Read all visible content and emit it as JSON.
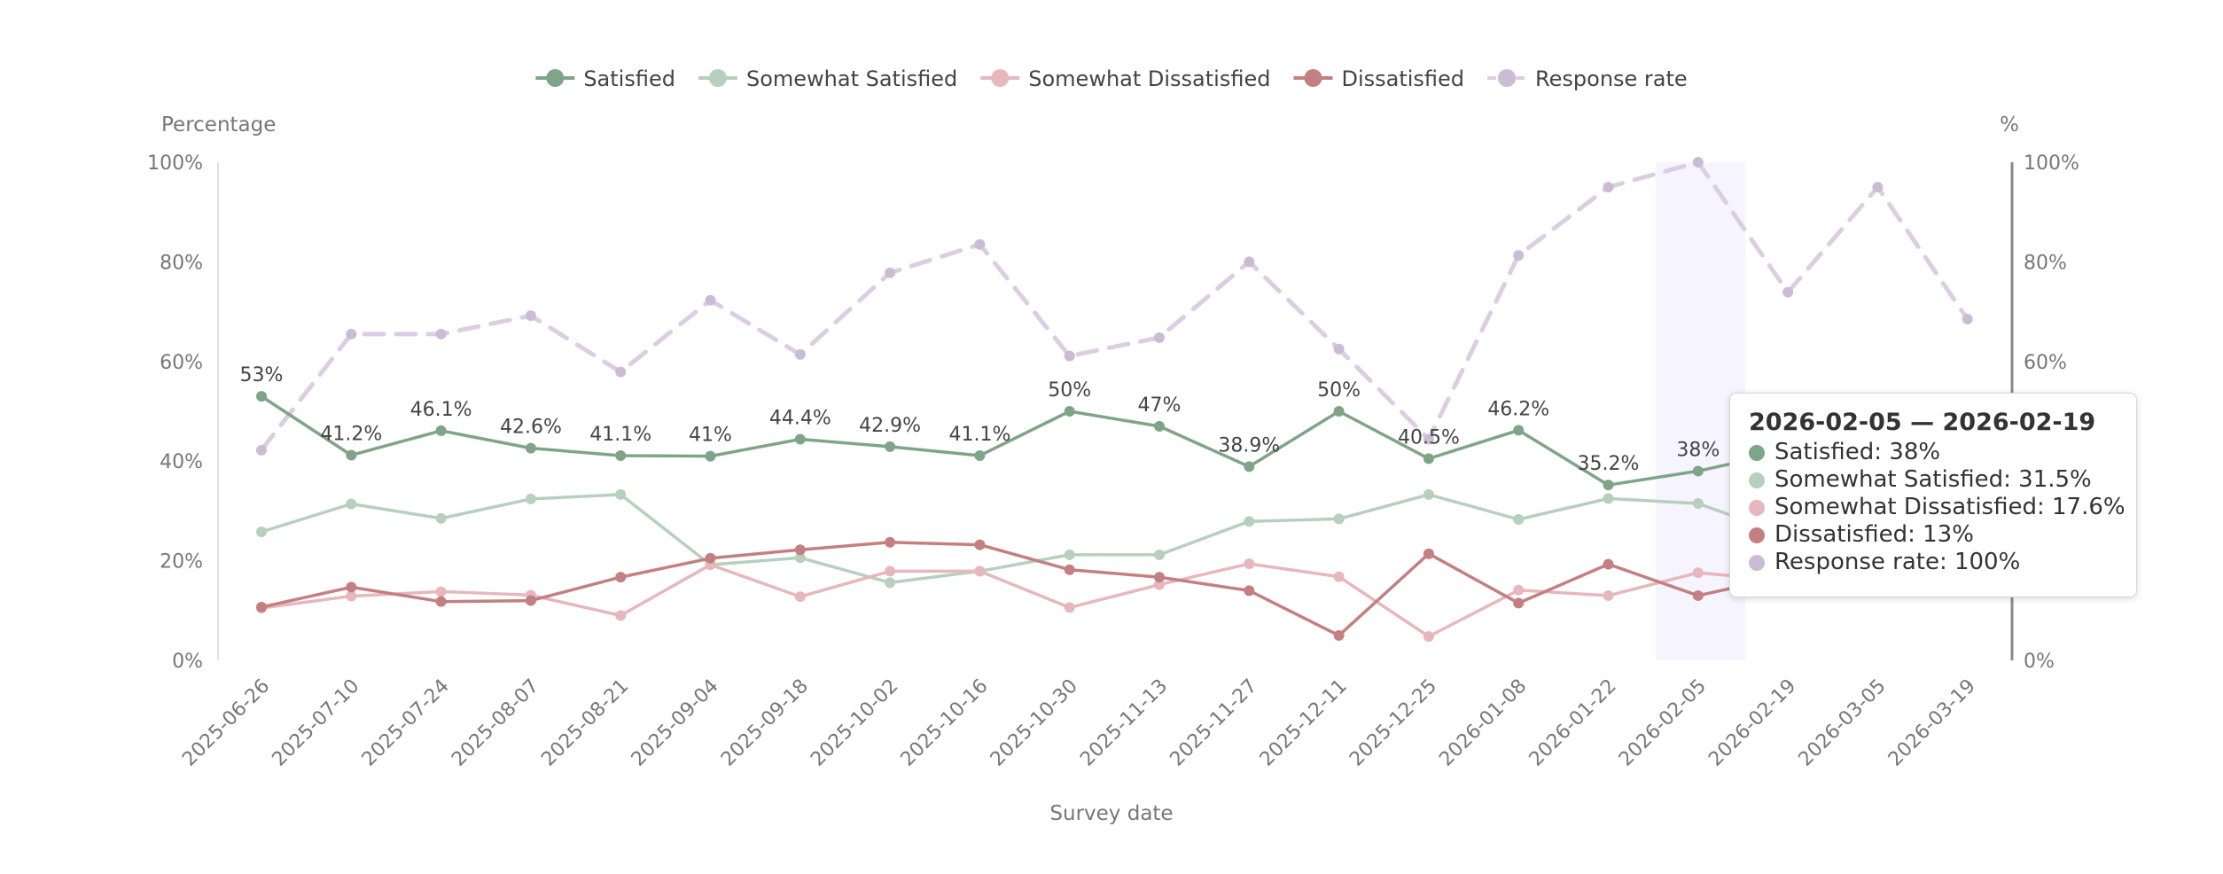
{
  "chart_data": {
    "type": "line",
    "xlabel": "Survey date",
    "ylabel_left": "Percentage",
    "ylabel_right": "%",
    "ylim": [
      0,
      100
    ],
    "yticks": [
      "0%",
      "20%",
      "40%",
      "60%",
      "80%",
      "100%"
    ],
    "legend_position": "top-center",
    "categories": [
      "2025-06-26",
      "2025-07-10",
      "2025-07-24",
      "2025-08-07",
      "2025-08-21",
      "2025-09-04",
      "2025-09-18",
      "2025-10-02",
      "2025-10-16",
      "2025-10-30",
      "2025-11-13",
      "2025-11-27",
      "2025-12-11",
      "2025-12-25",
      "2026-01-08",
      "2026-01-22",
      "2026-02-05",
      "2026-02-19",
      "2026-03-05",
      "2026-03-19"
    ],
    "highlight_index": 16,
    "series": [
      {
        "name": "Satisfied",
        "color": "#7fa487",
        "axis": "left",
        "dashed": false,
        "show_labels": true,
        "values": [
          53,
          41.2,
          46.1,
          42.6,
          41.1,
          41,
          44.4,
          42.9,
          41.1,
          50,
          47,
          38.9,
          50,
          40.5,
          46.2,
          35.2,
          38,
          42,
          null,
          null
        ],
        "labels": [
          "53%",
          "41.2%",
          "46.1%",
          "42.6%",
          "41.1%",
          "41%",
          "44.4%",
          "42.9%",
          "41.1%",
          "50%",
          "47%",
          "38.9%",
          "50%",
          "40.5%",
          "46.2%",
          "35.2%",
          "38%",
          "",
          "",
          ""
        ]
      },
      {
        "name": "Somewhat Satisfied",
        "color": "#b7cfbd",
        "axis": "left",
        "dashed": false,
        "show_labels": false,
        "values": [
          25.8,
          31.4,
          28.5,
          32.4,
          33.3,
          19.2,
          20.6,
          15.6,
          17.9,
          21.2,
          21.2,
          27.9,
          28.4,
          33.3,
          28.3,
          32.5,
          31.5,
          25,
          null,
          null
        ]
      },
      {
        "name": "Somewhat Dissatisfied",
        "color": "#e6b7bc",
        "axis": "left",
        "dashed": false,
        "show_labels": false,
        "values": [
          10.5,
          12.9,
          13.8,
          13.1,
          9,
          19.2,
          12.8,
          17.9,
          17.9,
          10.6,
          15.2,
          19.4,
          16.8,
          4.8,
          14.1,
          13,
          17.6,
          16,
          null,
          null
        ]
      },
      {
        "name": "Dissatisfied",
        "color": "#c47f80",
        "axis": "left",
        "dashed": false,
        "show_labels": false,
        "values": [
          10.7,
          14.7,
          11.8,
          12,
          16.7,
          20.5,
          22.2,
          23.7,
          23.2,
          18.2,
          16.7,
          14,
          5,
          21.4,
          11.5,
          19.3,
          13,
          17,
          null,
          null
        ]
      },
      {
        "name": "Response rate",
        "color": "#ddcde2",
        "marker_color": "#cbbcd4",
        "axis": "right",
        "dashed": true,
        "show_labels": false,
        "values": [
          42.2,
          65.5,
          65.5,
          69.2,
          57.9,
          72.3,
          61.4,
          77.8,
          83.5,
          61.1,
          64.8,
          80,
          62.5,
          44.4,
          81.3,
          95,
          100,
          73.9,
          95,
          68.5
        ]
      }
    ]
  },
  "tooltip": {
    "title": "2026-02-05 — 2026-02-19",
    "rows": [
      {
        "text": "Satisfied: 38%",
        "color": "#7fa487"
      },
      {
        "text": "Somewhat Satisfied: 31.5%",
        "color": "#b7cfbd"
      },
      {
        "text": "Somewhat Dissatisfied: 17.6%",
        "color": "#e6b7bc"
      },
      {
        "text": "Dissatisfied: 13%",
        "color": "#c47f80"
      },
      {
        "text": "Response rate: 100%",
        "color": "#cbbcd4"
      }
    ]
  }
}
